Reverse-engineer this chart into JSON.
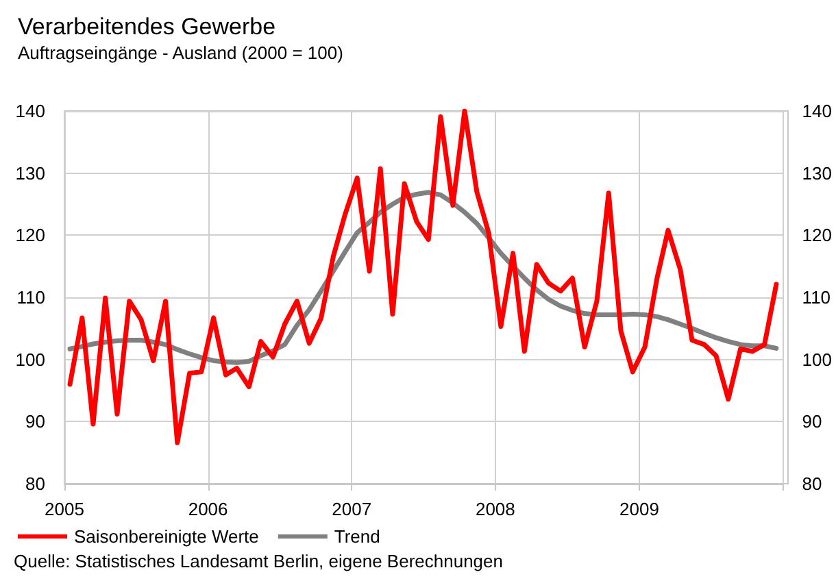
{
  "chart_data": {
    "type": "line",
    "title": "Verarbeitendes Gewerbe",
    "subtitle": "Auftragseingänge - Ausland (2000 = 100)",
    "x": [
      "2005-01-15",
      "2005-02-15",
      "2005-03-15",
      "2005-04-15",
      "2005-05-15",
      "2005-06-15",
      "2005-07-15",
      "2005-08-15",
      "2005-09-15",
      "2005-10-15",
      "2005-11-15",
      "2005-12-15",
      "2006-01-15",
      "2006-02-15",
      "2006-03-15",
      "2006-04-15",
      "2006-05-15",
      "2006-06-15",
      "2006-07-15",
      "2006-08-15",
      "2006-09-15",
      "2006-10-15",
      "2006-11-15",
      "2006-12-15",
      "2007-01-15",
      "2007-02-15",
      "2007-03-15",
      "2007-04-15",
      "2007-05-15",
      "2007-06-15",
      "2007-07-15",
      "2007-08-15",
      "2007-09-15",
      "2007-10-15",
      "2007-11-15",
      "2007-12-15",
      "2008-01-15",
      "2008-02-15",
      "2008-03-15",
      "2008-04-15",
      "2008-05-15",
      "2008-06-15",
      "2008-07-15",
      "2008-08-15",
      "2008-09-15",
      "2008-10-15",
      "2008-11-15",
      "2008-12-15",
      "2009-01-15",
      "2009-02-15",
      "2009-03-15",
      "2009-04-15",
      "2009-05-15",
      "2009-06-15",
      "2009-07-15",
      "2009-08-15",
      "2009-09-15",
      "2009-10-15",
      "2009-11-15",
      "2009-12-15"
    ],
    "series": [
      {
        "name": "Saisonbereinigte Werte",
        "color": "#ff0000",
        "values": [
          96.0,
          106.7,
          89.6,
          109.9,
          91.2,
          109.4,
          106.4,
          99.8,
          109.4,
          86.6,
          97.8,
          98.0,
          106.7,
          97.5,
          98.6,
          95.6,
          102.9,
          100.4,
          105.7,
          109.4,
          102.6,
          106.6,
          116.5,
          123.3,
          129.2,
          114.2,
          130.7,
          107.3,
          128.3,
          122.2,
          119.3,
          139.1,
          124.8,
          140,
          127.0,
          120.4,
          105.3,
          117.1,
          101.3,
          115.3,
          112.3,
          111.0,
          113.1,
          102.0,
          109.4,
          126.8,
          104.6,
          98.0,
          102.0,
          113.1,
          120.8,
          114.5,
          103.1,
          102.4,
          100.6,
          93.6,
          101.7,
          101.3,
          102.4,
          112.1
        ]
      },
      {
        "name": "Trend",
        "color": "#808080",
        "values": [
          101.7,
          102.1,
          102.5,
          102.8,
          103.0,
          103.1,
          103.1,
          102.8,
          102.4,
          101.6,
          100.9,
          100.3,
          99.8,
          99.6,
          99.5,
          99.7,
          100.6,
          101.4,
          102.4,
          105.5,
          108.0,
          111.0,
          114.2,
          117.3,
          120.4,
          122.1,
          123.7,
          125.0,
          126.1,
          126.6,
          126.9,
          126.5,
          125.2,
          123.7,
          121.9,
          119.6,
          117.1,
          115.0,
          113.1,
          111.2,
          109.7,
          108.6,
          107.9,
          107.4,
          107.2,
          107.2,
          107.2,
          107.3,
          107.2,
          106.9,
          106.4,
          105.7,
          105.0,
          104.2,
          103.5,
          102.9,
          102.4,
          102.2,
          102.2,
          101.8
        ]
      }
    ],
    "xlim": [
      "2005-01-01",
      "2010-01-01"
    ],
    "xticks": [
      "2005",
      "2006",
      "2007",
      "2008",
      "2009",
      {
        "value": "2010",
        "label": null
      }
    ],
    "ylim": [
      80,
      140
    ],
    "yticks": [
      80,
      90,
      100,
      110,
      120,
      130,
      140
    ],
    "y2lim": [
      80,
      140
    ],
    "y2ticks": [
      80,
      90,
      100,
      110,
      120,
      130,
      140
    ],
    "grid": true,
    "legend": "bottom left",
    "marker": "none",
    "line_style": "solid",
    "annotations": [
      "Quelle: Statistisches Landesamt Berlin, eigene Berechnungen"
    ]
  }
}
